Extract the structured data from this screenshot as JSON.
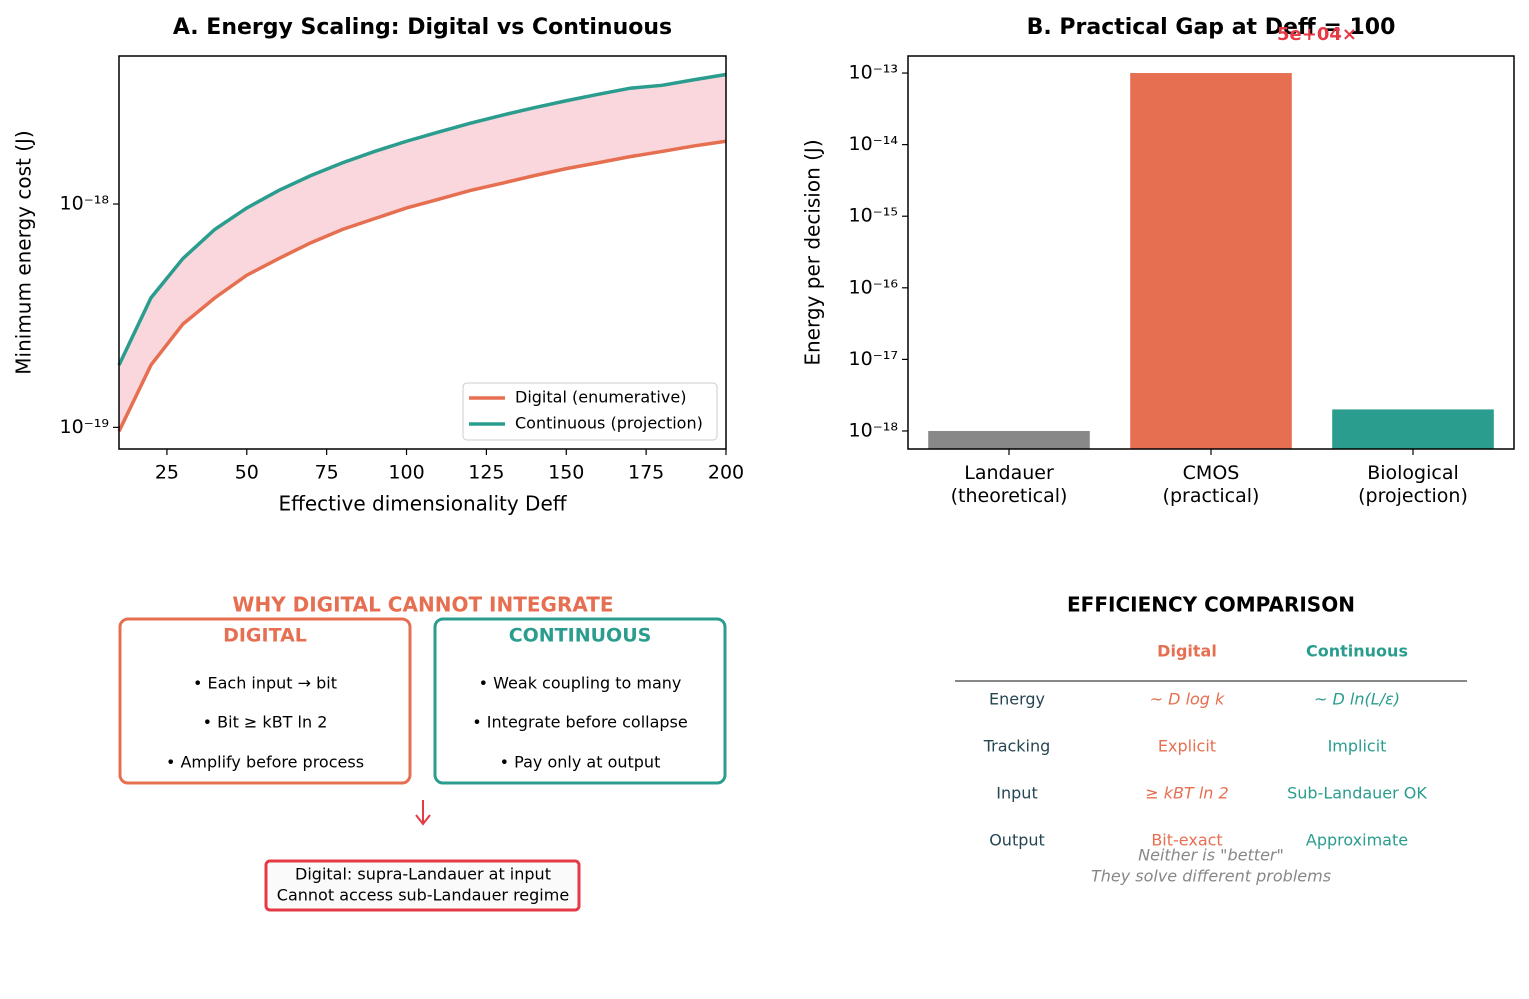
{
  "chart_data": [
    {
      "type": "line",
      "title": "A. Energy Scaling: Digital vs Continuous",
      "xlabel": "Effective dimensionality Deff",
      "ylabel": "Minimum energy cost (J)",
      "x": [
        10,
        20,
        30,
        40,
        50,
        60,
        70,
        80,
        90,
        100,
        110,
        120,
        130,
        140,
        150,
        160,
        170,
        180,
        190,
        200
      ],
      "series": [
        {
          "name": "Digital (enumerative)",
          "color": "#e76f51",
          "values": [
            9.6e-20,
            1.9e-19,
            2.9e-19,
            3.8e-19,
            4.8e-19,
            5.7e-19,
            6.7e-19,
            7.7e-19,
            8.6e-19,
            9.6e-19,
            1.05e-18,
            1.15e-18,
            1.24e-18,
            1.34e-18,
            1.44e-18,
            1.53e-18,
            1.63e-18,
            1.72e-18,
            1.82e-18,
            1.91e-18
          ]
        },
        {
          "name": "Continuous (projection)",
          "color": "#2a9d8f",
          "values": [
            1.9e-19,
            3.8e-19,
            5.7e-19,
            7.7e-19,
            9.6e-19,
            1.15e-18,
            1.34e-18,
            1.53e-18,
            1.72e-18,
            1.91e-18,
            2.1e-18,
            2.3e-18,
            2.5e-18,
            2.7e-18,
            2.9e-18,
            3.1e-18,
            3.3e-18,
            3.4e-18,
            3.6e-18,
            3.8e-18
          ]
        }
      ],
      "fill_between": true,
      "fill_color": "#f9d7dc",
      "xlim": [
        10,
        200
      ],
      "xticks": [
        25,
        50,
        75,
        100,
        125,
        150,
        175,
        200
      ],
      "ylim": [
        8e-20,
        4.6e-18
      ],
      "log_y": true,
      "yticks": [
        {
          "value": 1e-19,
          "label": "10⁻¹⁹"
        },
        {
          "value": 1e-18,
          "label": "10⁻¹⁸"
        }
      ],
      "legend": "lower right"
    },
    {
      "type": "bar",
      "title": "B. Practical Gap at Deff = 100",
      "annotation": "5e+04×",
      "ylabel": "Energy per decision (J)",
      "categories": [
        "Landauer\n(theoretical)",
        "CMOS\n(practical)",
        "Biological\n(projection)"
      ],
      "values": [
        1e-18,
        1e-13,
        2e-18
      ],
      "colors": [
        "#888888",
        "#e76f51",
        "#2a9d8f"
      ],
      "ylim": [
        5.6e-19,
        1.73e-13
      ],
      "log_y": true,
      "yticks": [
        {
          "value": 1e-18,
          "label": "10⁻¹⁸"
        },
        {
          "value": 1e-17,
          "label": "10⁻¹⁷"
        },
        {
          "value": 1e-16,
          "label": "10⁻¹⁶"
        },
        {
          "value": 1e-15,
          "label": "10⁻¹⁵"
        },
        {
          "value": 1e-14,
          "label": "10⁻¹⁴"
        },
        {
          "value": 1e-13,
          "label": "10⁻¹³"
        }
      ]
    }
  ],
  "diagram": {
    "title": "WHY DIGITAL CANNOT INTEGRATE",
    "boxes": [
      {
        "heading": "DIGITAL",
        "items": [
          "• Each input → bit",
          "• Bit ≥ kBT ln 2",
          "• Amplify before process"
        ]
      },
      {
        "heading": "CONTINUOUS",
        "items": [
          "• Weak coupling to many",
          "• Integrate before collapse",
          "• Pay only at output"
        ]
      }
    ],
    "conclusion": [
      "Digital: supra-Landauer at input",
      "Cannot access sub-Landauer regime"
    ]
  },
  "table": {
    "title": "EFFICIENCY COMPARISON",
    "headers": [
      "Digital",
      "Continuous"
    ],
    "rows": [
      [
        "Energy",
        "~ D log k",
        "~ D ln(L/ε)"
      ],
      [
        "Tracking",
        "Explicit",
        "Implicit"
      ],
      [
        "Input",
        "≥ kBT ln 2",
        "Sub-Landauer OK"
      ],
      [
        "Output",
        "Bit-exact",
        "Approximate"
      ]
    ],
    "footnote": [
      "Neither is \"better\"",
      "They solve different problems"
    ]
  }
}
